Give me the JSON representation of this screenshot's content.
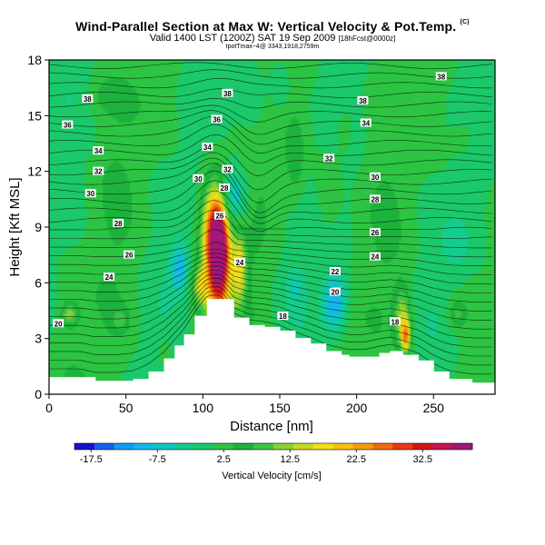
{
  "header": {
    "title": "Wind-Parallel Section at Max W: Vertical Velocity & Pot.Temp.",
    "title_mark": "(C)",
    "subtitle": "Valid 1400 LST (1200Z) SAT 19 Sep 2009",
    "subtitle_small": "[18hFcst@0000z]",
    "info_line": "tpotTmax~4@ 3343,1918,2759m"
  },
  "chart_data": {
    "type": "heatmap",
    "xlabel": "Distance [nm]",
    "ylabel": "Height [Kft MSL]",
    "xlim": [
      0,
      290
    ],
    "ylim": [
      0,
      18
    ],
    "x_ticks": [
      0,
      50,
      100,
      150,
      200,
      250
    ],
    "y_ticks": [
      0,
      3,
      6,
      9,
      12,
      15,
      18
    ],
    "colorbar": {
      "label": "Vertical Velocity [cm/s]",
      "tick_values": [
        -17.5,
        -7.5,
        2.5,
        12.5,
        22.5,
        32.5
      ],
      "tick_labels": [
        "-17.5",
        "-7.5",
        "2.5",
        "12.5",
        "22.5",
        "32.5"
      ],
      "range": [
        -20,
        40
      ],
      "colors": [
        "#1a0fd0",
        "#1561f2",
        "#129cf2",
        "#14b9ea",
        "#0ec7c2",
        "#14cc8c",
        "#1bc86a",
        "#2cc442",
        "#1db23c",
        "#3cc445",
        "#88d22f",
        "#c6d924",
        "#f0e019",
        "#f7c112",
        "#f49b0e",
        "#ef6a10",
        "#e63a12",
        "#d41414",
        "#c4145a",
        "#a01878"
      ]
    },
    "terrain": [
      [
        0,
        0.9
      ],
      [
        20,
        0.9
      ],
      [
        30,
        0.7
      ],
      [
        45,
        0.7
      ],
      [
        55,
        0.8
      ],
      [
        65,
        1.2
      ],
      [
        75,
        1.9
      ],
      [
        82,
        2.6
      ],
      [
        88,
        3.2
      ],
      [
        95,
        4.2
      ],
      [
        103,
        5.1
      ],
      [
        112,
        5.1
      ],
      [
        120,
        4.1
      ],
      [
        130,
        3.7
      ],
      [
        140,
        3.6
      ],
      [
        150,
        3.4
      ],
      [
        160,
        3.0
      ],
      [
        170,
        2.7
      ],
      [
        180,
        2.3
      ],
      [
        190,
        2.1
      ],
      [
        195,
        2.0
      ],
      [
        205,
        2.0
      ],
      [
        215,
        2.2
      ],
      [
        222,
        2.3
      ],
      [
        230,
        2.1
      ],
      [
        240,
        1.8
      ],
      [
        250,
        1.2
      ],
      [
        260,
        0.8
      ],
      [
        275,
        0.6
      ],
      [
        290,
        0.6
      ]
    ],
    "vertical_velocity_cells": [
      {
        "x": 110,
        "y": 7.9,
        "sx": 6,
        "sy": 2.6,
        "w": 38
      },
      {
        "x": 110,
        "y": 7.3,
        "sx": 11,
        "sy": 4.2,
        "w": 16
      },
      {
        "x": 104,
        "y": 9.0,
        "sx": 6,
        "sy": 2.0,
        "w": 8
      },
      {
        "x": 98,
        "y": 5.8,
        "sx": 5,
        "sy": 1.0,
        "w": 10
      },
      {
        "x": 124,
        "y": 6.8,
        "sx": 4,
        "sy": 1.8,
        "w": 12
      },
      {
        "x": 119,
        "y": 10.6,
        "sx": 10,
        "sy": 1.7,
        "w": -14
      },
      {
        "x": 132,
        "y": 15.8,
        "sx": 10,
        "sy": 1.8,
        "w": -5
      },
      {
        "x": 150,
        "y": 16.5,
        "sx": 7,
        "sy": 1.5,
        "w": -4
      },
      {
        "x": 85,
        "y": 6.8,
        "sx": 6,
        "sy": 1.3,
        "w": -10
      },
      {
        "x": 186,
        "y": 5.0,
        "sx": 8,
        "sy": 1.6,
        "w": -13
      },
      {
        "x": 160,
        "y": 5.8,
        "sx": 6,
        "sy": 1.1,
        "w": -4
      },
      {
        "x": 230,
        "y": 4.2,
        "sx": 5,
        "sy": 1.5,
        "w": 12
      },
      {
        "x": 232,
        "y": 3.1,
        "sx": 3,
        "sy": 0.8,
        "w": 20
      },
      {
        "x": 265,
        "y": 4.3,
        "sx": 6,
        "sy": 0.8,
        "w": 7
      },
      {
        "x": 13,
        "y": 4.3,
        "sx": 5,
        "sy": 0.6,
        "w": 10
      },
      {
        "x": 46,
        "y": 4.0,
        "sx": 6,
        "sy": 0.7,
        "w": 5
      },
      {
        "x": 160,
        "y": 12.5,
        "sx": 6,
        "sy": 2.2,
        "w": 5
      },
      {
        "x": 182,
        "y": 11.0,
        "sx": 8,
        "sy": 2.0,
        "w": 4
      },
      {
        "x": 226,
        "y": 14.8,
        "sx": 8,
        "sy": 2.0,
        "w": -3
      },
      {
        "x": 192,
        "y": 14.3,
        "sx": 6,
        "sy": 1.5,
        "w": 4
      },
      {
        "x": 35,
        "y": 16.0,
        "sx": 12,
        "sy": 1.0,
        "w": 3
      },
      {
        "x": 265,
        "y": 8.0,
        "sx": 10,
        "sy": 1.5,
        "w": -3
      },
      {
        "x": 272,
        "y": 14.0,
        "sx": 10,
        "sy": 1.5,
        "w": 3
      },
      {
        "x": 75,
        "y": 2.2,
        "sx": 4,
        "sy": 0.7,
        "w": 5
      }
    ],
    "isentrope_labels": [
      {
        "text": "38",
        "x": 255,
        "y": 17.1
      },
      {
        "text": "38",
        "x": 116,
        "y": 16.2
      },
      {
        "text": "38",
        "x": 25,
        "y": 15.9
      },
      {
        "text": "38",
        "x": 204,
        "y": 15.8
      },
      {
        "text": "36",
        "x": 12,
        "y": 14.5
      },
      {
        "text": "36",
        "x": 109,
        "y": 14.8
      },
      {
        "text": "34",
        "x": 206,
        "y": 14.6
      },
      {
        "text": "34",
        "x": 32,
        "y": 13.1
      },
      {
        "text": "34",
        "x": 103,
        "y": 13.3
      },
      {
        "text": "32",
        "x": 32,
        "y": 12.0
      },
      {
        "text": "32",
        "x": 116,
        "y": 12.1
      },
      {
        "text": "32",
        "x": 182,
        "y": 12.7
      },
      {
        "text": "30",
        "x": 27,
        "y": 10.8
      },
      {
        "text": "30",
        "x": 97,
        "y": 11.6
      },
      {
        "text": "30",
        "x": 212,
        "y": 11.7
      },
      {
        "text": "28",
        "x": 114,
        "y": 11.1
      },
      {
        "text": "28",
        "x": 212,
        "y": 10.5
      },
      {
        "text": "28",
        "x": 45,
        "y": 9.2
      },
      {
        "text": "26",
        "x": 111,
        "y": 9.6
      },
      {
        "text": "26",
        "x": 212,
        "y": 8.7
      },
      {
        "text": "26",
        "x": 52,
        "y": 7.5
      },
      {
        "text": "24",
        "x": 124,
        "y": 7.1
      },
      {
        "text": "24",
        "x": 212,
        "y": 7.4
      },
      {
        "text": "24",
        "x": 39,
        "y": 6.3
      },
      {
        "text": "22",
        "x": 186,
        "y": 6.6
      },
      {
        "text": "20",
        "x": 186,
        "y": 5.5
      },
      {
        "text": "20",
        "x": 6,
        "y": 3.8
      },
      {
        "text": "18",
        "x": 152,
        "y": 4.2
      },
      {
        "text": "18",
        "x": 225,
        "y": 3.9
      }
    ]
  }
}
